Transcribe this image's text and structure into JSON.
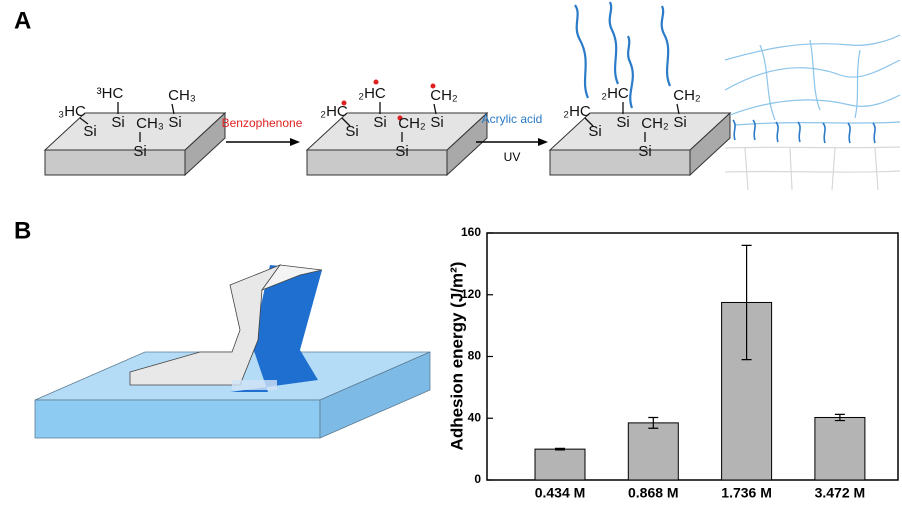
{
  "panel_labels": [
    "A",
    "B"
  ],
  "scheme": {
    "blocks": [
      {
        "labels": [
          "₃HC",
          "Si",
          "³HC",
          "Si",
          "CH₃",
          "Si",
          "CH₃",
          "Si"
        ]
      },
      {
        "labels": [
          "₂HC",
          "Si",
          "₂HC",
          "Si",
          "CH₂",
          "Si",
          "CH₂",
          "Si"
        ]
      },
      {
        "labels": [
          "₂HC",
          "Si",
          "₂HC",
          "Si",
          "CH₂",
          "Si",
          "CH₂",
          "Si"
        ]
      }
    ],
    "step1": "Benzophenone",
    "step2": "Acrylic acid",
    "step2_condition": "UV"
  },
  "chart_data": {
    "type": "bar",
    "y_label": "Adhesion energy (J/m²)",
    "categories": [
      "0.434 M",
      "0.868 M",
      "1.736 M",
      "3.472 M"
    ],
    "values": [
      20,
      37,
      115,
      40.5
    ],
    "errors": [
      0.5,
      3.5,
      37,
      2
    ],
    "color": "#b4b4b4",
    "ylim": [
      0,
      160
    ],
    "yticks": [
      0,
      40,
      80,
      120,
      160
    ]
  }
}
